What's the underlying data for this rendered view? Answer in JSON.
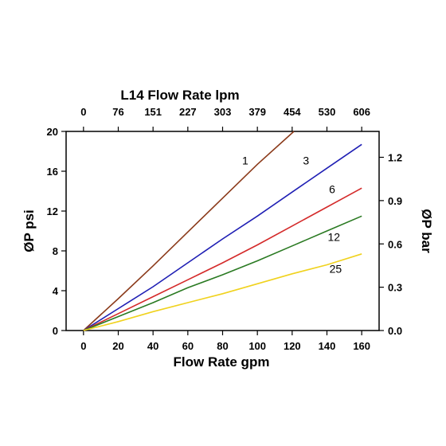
{
  "chart_data": {
    "type": "line",
    "title": "L14  Flow Rate lpm",
    "xlabel": "Flow Rate gpm",
    "ylabel_left": "ØP psi",
    "ylabel_right": "ØP bar",
    "x_range": [
      -10,
      170
    ],
    "y_range": [
      0,
      20
    ],
    "x_ticks": [
      0,
      20,
      40,
      60,
      80,
      100,
      120,
      140,
      160
    ],
    "x_tick_labels": [
      "0",
      "20",
      "40",
      "60",
      "80",
      "100",
      "120",
      "140",
      "160"
    ],
    "y_ticks": [
      0,
      4,
      8,
      12,
      16,
      20
    ],
    "y_tick_labels": [
      "0",
      "4",
      "8",
      "12",
      "16",
      "20"
    ],
    "top_ticks": [
      0,
      20,
      40,
      60,
      80,
      100,
      120,
      140,
      160
    ],
    "top_tick_labels": [
      "0",
      "76",
      "151",
      "227",
      "303",
      "379",
      "454",
      "530",
      "606"
    ],
    "right_ticks_psi": [
      0,
      4.35,
      8.7,
      13.05,
      17.4
    ],
    "right_tick_labels": [
      "0.0",
      "0.3",
      "0.6",
      "0.9",
      "1.2"
    ],
    "series": [
      {
        "name": "1",
        "color": "#8B3A1A",
        "x": [
          0,
          20,
          40,
          60,
          80,
          100,
          121
        ],
        "y": [
          0,
          3.2,
          6.5,
          9.9,
          13.3,
          16.7,
          20
        ]
      },
      {
        "name": "3",
        "color": "#1F1FB4",
        "x": [
          0,
          20,
          40,
          60,
          80,
          100,
          120,
          140,
          160
        ],
        "y": [
          0,
          2.2,
          4.4,
          6.8,
          9.2,
          11.5,
          13.9,
          16.3,
          18.7
        ]
      },
      {
        "name": "6",
        "color": "#D42A2A",
        "x": [
          0,
          20,
          40,
          60,
          80,
          100,
          120,
          140,
          160
        ],
        "y": [
          0,
          1.7,
          3.4,
          5.1,
          6.8,
          8.6,
          10.5,
          12.4,
          14.3
        ]
      },
      {
        "name": "12",
        "color": "#2A7A22",
        "x": [
          0,
          20,
          40,
          60,
          80,
          100,
          120,
          140,
          160
        ],
        "y": [
          0,
          1.4,
          2.8,
          4.3,
          5.6,
          7.0,
          8.5,
          10.0,
          11.5
        ]
      },
      {
        "name": "25",
        "color": "#F0D21E",
        "x": [
          0,
          20,
          40,
          60,
          80,
          100,
          120,
          140,
          160
        ],
        "y": [
          0,
          0.9,
          1.9,
          2.8,
          3.7,
          4.7,
          5.7,
          6.6,
          7.7
        ]
      }
    ],
    "curve_labels": [
      {
        "text": "1",
        "x": 93,
        "y": 16.7
      },
      {
        "text": "3",
        "x": 128,
        "y": 16.7
      },
      {
        "text": "6",
        "x": 143,
        "y": 13.8
      },
      {
        "text": "12",
        "x": 144,
        "y": 9.0
      },
      {
        "text": "25",
        "x": 145,
        "y": 5.8
      }
    ],
    "grid": false,
    "legend": "none"
  }
}
